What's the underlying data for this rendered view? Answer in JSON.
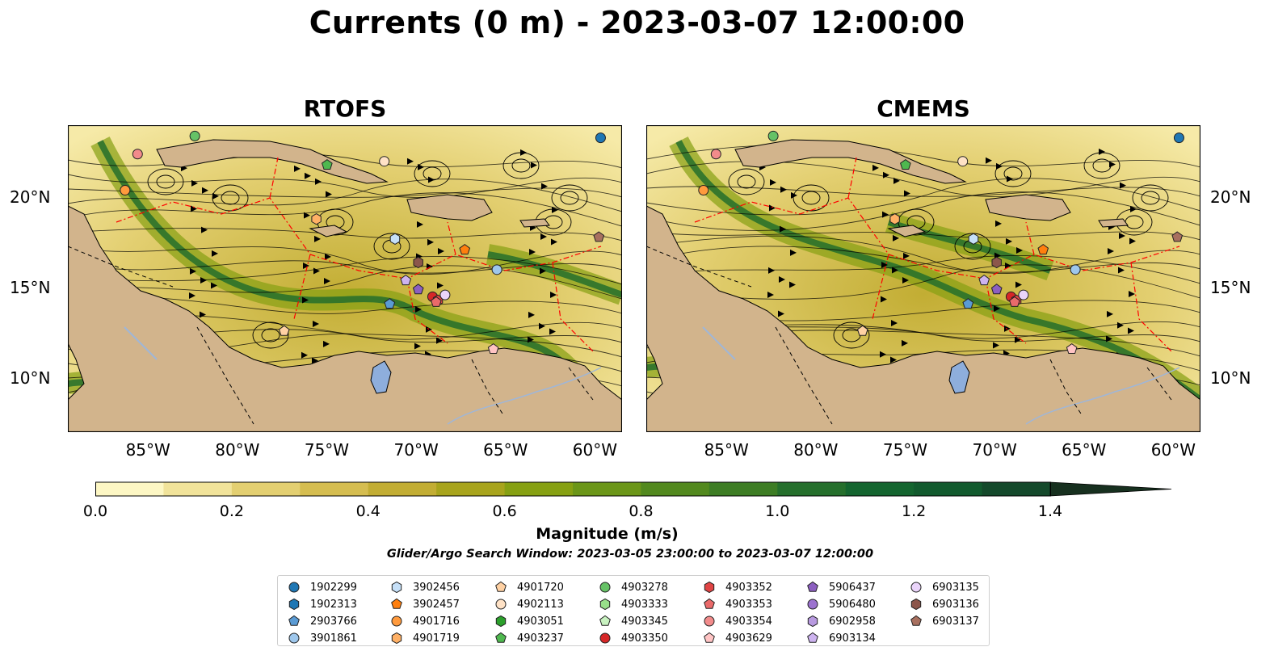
{
  "title": "Currents (0 m) - 2023-03-07 12:00:00",
  "panels": [
    {
      "title": "RTOFS"
    },
    {
      "title": "CMEMS"
    }
  ],
  "axes": {
    "lon_ticks": [
      "85°W",
      "80°W",
      "75°W",
      "70°W",
      "65°W",
      "60°W"
    ],
    "lat_ticks": [
      "20°N",
      "15°N",
      "10°N"
    ],
    "lon_range": [
      -89.5,
      -58.5
    ],
    "lat_range": [
      7,
      24
    ]
  },
  "colorbar": {
    "label": "Magnitude (m/s)",
    "ticks": [
      "0.0",
      "0.2",
      "0.4",
      "0.6",
      "0.8",
      "1.0",
      "1.2",
      "1.4"
    ],
    "range": [
      0,
      1.5
    ],
    "extend": "max",
    "colors": [
      "#fdf7c4",
      "#f1e39a",
      "#e3cf71",
      "#d5bd50",
      "#c2ad33",
      "#a8a41c",
      "#86a012",
      "#6b9618",
      "#52891e",
      "#3d7d24",
      "#256f2c",
      "#14652f",
      "#125a2e",
      "#14492b",
      "#163b25",
      "#17301f"
    ]
  },
  "search_window": "Glider/Argo Search Window: 2023-03-05 23:00:00 to 2023-03-07 12:00:00",
  "colors": {
    "land": "#d2b48c",
    "lake": "#8eaedc",
    "eez_line": "#ff0000",
    "streamline": "#000000"
  },
  "legend": [
    {
      "id": "1902299",
      "marker": "circle",
      "color": "#1f77b4"
    },
    {
      "id": "1902313",
      "marker": "hexagon",
      "color": "#1f77b4"
    },
    {
      "id": "2903766",
      "marker": "pentagon",
      "color": "#5a9bd4"
    },
    {
      "id": "3901861",
      "marker": "circle",
      "color": "#9ec7ec"
    },
    {
      "id": "3902456",
      "marker": "hexagon",
      "color": "#c6e0f8"
    },
    {
      "id": "3902457",
      "marker": "pentagon",
      "color": "#ff7f0e"
    },
    {
      "id": "4901716",
      "marker": "circle",
      "color": "#ff9a3d"
    },
    {
      "id": "4901719",
      "marker": "hexagon",
      "color": "#ffb065"
    },
    {
      "id": "4901720",
      "marker": "pentagon",
      "color": "#ffd1a3"
    },
    {
      "id": "4902113",
      "marker": "circle",
      "color": "#ffe2c6"
    },
    {
      "id": "4903051",
      "marker": "hexagon",
      "color": "#2ca02c"
    },
    {
      "id": "4903237",
      "marker": "pentagon",
      "color": "#4fb84f"
    },
    {
      "id": "4903278",
      "marker": "circle",
      "color": "#66c266"
    },
    {
      "id": "4903333",
      "marker": "hexagon",
      "color": "#98df8a"
    },
    {
      "id": "4903345",
      "marker": "pentagon",
      "color": "#c8f2c0"
    },
    {
      "id": "4903350",
      "marker": "circle",
      "color": "#d62728"
    },
    {
      "id": "4903352",
      "marker": "hexagon",
      "color": "#e04444"
    },
    {
      "id": "4903353",
      "marker": "pentagon",
      "color": "#ea6a6a"
    },
    {
      "id": "4903354",
      "marker": "circle",
      "color": "#f28b8b"
    },
    {
      "id": "4903629",
      "marker": "pentagon",
      "color": "#ffc4c4"
    },
    {
      "id": "5906437",
      "marker": "pentagon",
      "color": "#8c5fc0"
    },
    {
      "id": "5906480",
      "marker": "circle",
      "color": "#9c72cf"
    },
    {
      "id": "6902958",
      "marker": "hexagon",
      "color": "#b89ae0"
    },
    {
      "id": "6903134",
      "marker": "pentagon",
      "color": "#cdb3ef"
    },
    {
      "id": "6903135",
      "marker": "circle",
      "color": "#ead4fa"
    },
    {
      "id": "6903136",
      "marker": "hexagon",
      "color": "#8c564b"
    },
    {
      "id": "6903137",
      "marker": "pentagon",
      "color": "#a8705f"
    }
  ],
  "floats": [
    {
      "id": "1902299",
      "lon": -59.7,
      "lat": 23.3
    },
    {
      "id": "2903766",
      "lon": -71.5,
      "lat": 14.1
    },
    {
      "id": "3901861",
      "lon": -65.5,
      "lat": 16.0
    },
    {
      "id": "3902456",
      "lon": -71.2,
      "lat": 17.7
    },
    {
      "id": "3902457",
      "lon": -67.3,
      "lat": 17.1
    },
    {
      "id": "4901716",
      "lon": -86.3,
      "lat": 20.4
    },
    {
      "id": "4901719",
      "lon": -75.6,
      "lat": 18.8
    },
    {
      "id": "4901720",
      "lon": -77.4,
      "lat": 12.6
    },
    {
      "id": "4902113",
      "lon": -71.8,
      "lat": 22.0
    },
    {
      "id": "4903237",
      "lon": -75.0,
      "lat": 21.8
    },
    {
      "id": "4903278",
      "lon": -82.4,
      "lat": 23.4
    },
    {
      "id": "4903350",
      "lon": -69.1,
      "lat": 14.5
    },
    {
      "id": "4903352",
      "lon": -68.8,
      "lat": 14.3
    },
    {
      "id": "4903353",
      "lon": -68.9,
      "lat": 14.2
    },
    {
      "id": "4903354",
      "lon": -85.6,
      "lat": 22.4
    },
    {
      "id": "4903629",
      "lon": -65.7,
      "lat": 11.6
    },
    {
      "id": "5906437",
      "lon": -69.9,
      "lat": 14.9
    },
    {
      "id": "6903134",
      "lon": -70.6,
      "lat": 15.4
    },
    {
      "id": "6903135",
      "lon": -68.4,
      "lat": 14.6
    },
    {
      "id": "6903136",
      "lon": -69.9,
      "lat": 16.4
    },
    {
      "id": "6903137",
      "lon": -59.8,
      "lat": 17.8
    }
  ]
}
